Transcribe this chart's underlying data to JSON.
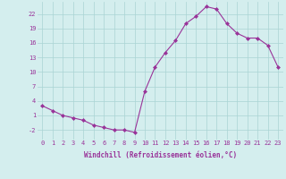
{
  "x": [
    0,
    1,
    2,
    3,
    4,
    5,
    6,
    7,
    8,
    9,
    10,
    11,
    12,
    13,
    14,
    15,
    16,
    17,
    18,
    19,
    20,
    21,
    22,
    23
  ],
  "y": [
    3,
    2,
    1,
    0.5,
    0,
    -1,
    -1.5,
    -2,
    -2,
    -2.5,
    6,
    11,
    14,
    16.5,
    20,
    21.5,
    23.5,
    23,
    20,
    18,
    17,
    17,
    15.5,
    11
  ],
  "line_color": "#993399",
  "marker": "D",
  "marker_size": 2.0,
  "background_color": "#d4eeee",
  "grid_color": "#aad4d4",
  "xlabel": "Windchill (Refroidissement éolien,°C)",
  "xlabel_color": "#993399",
  "tick_color": "#993399",
  "xlim": [
    -0.5,
    23.5
  ],
  "ylim": [
    -4.0,
    24.5
  ],
  "yticks": [
    -2,
    1,
    4,
    7,
    10,
    13,
    16,
    19,
    22
  ],
  "xticks": [
    0,
    1,
    2,
    3,
    4,
    5,
    6,
    7,
    8,
    9,
    10,
    11,
    12,
    13,
    14,
    15,
    16,
    17,
    18,
    19,
    20,
    21,
    22,
    23
  ],
  "tick_fontsize": 5.0,
  "xlabel_fontsize": 5.5
}
